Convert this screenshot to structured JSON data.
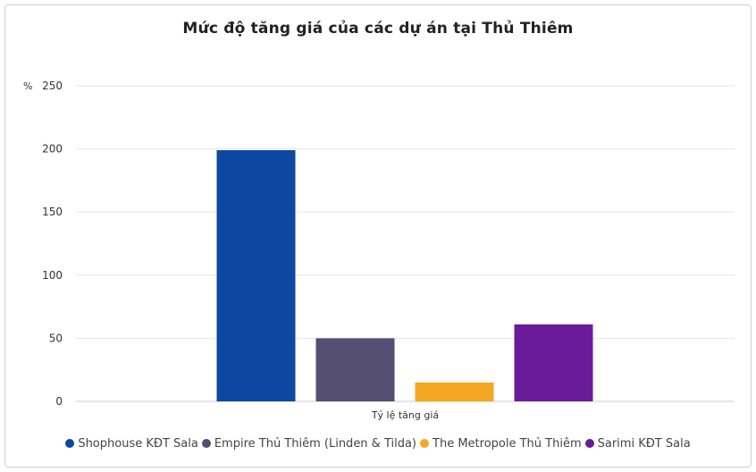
{
  "chart_data": {
    "type": "bar",
    "title": "Mức độ tăng giá của các dự án tại Thủ Thiêm",
    "ylabel": "%",
    "xlabel": "",
    "categories": [
      "Tỷ lệ tăng giá"
    ],
    "ylim": [
      0,
      250
    ],
    "yticks": [
      0,
      50,
      100,
      150,
      200,
      250
    ],
    "grid": true,
    "legend_position": "bottom",
    "series": [
      {
        "name": "Shophouse KĐT Sala",
        "values": [
          199
        ],
        "color": "#0d47a1"
      },
      {
        "name": "Empire Thủ Thiêm (Linden & Tilda)",
        "values": [
          50
        ],
        "color": "#544e72"
      },
      {
        "name": "The Metropole Thủ Thiêm",
        "values": [
          15
        ],
        "color": "#f5a623"
      },
      {
        "name": "Sarimi KĐT Sala",
        "values": [
          61
        ],
        "color": "#6a1b9a"
      }
    ]
  }
}
